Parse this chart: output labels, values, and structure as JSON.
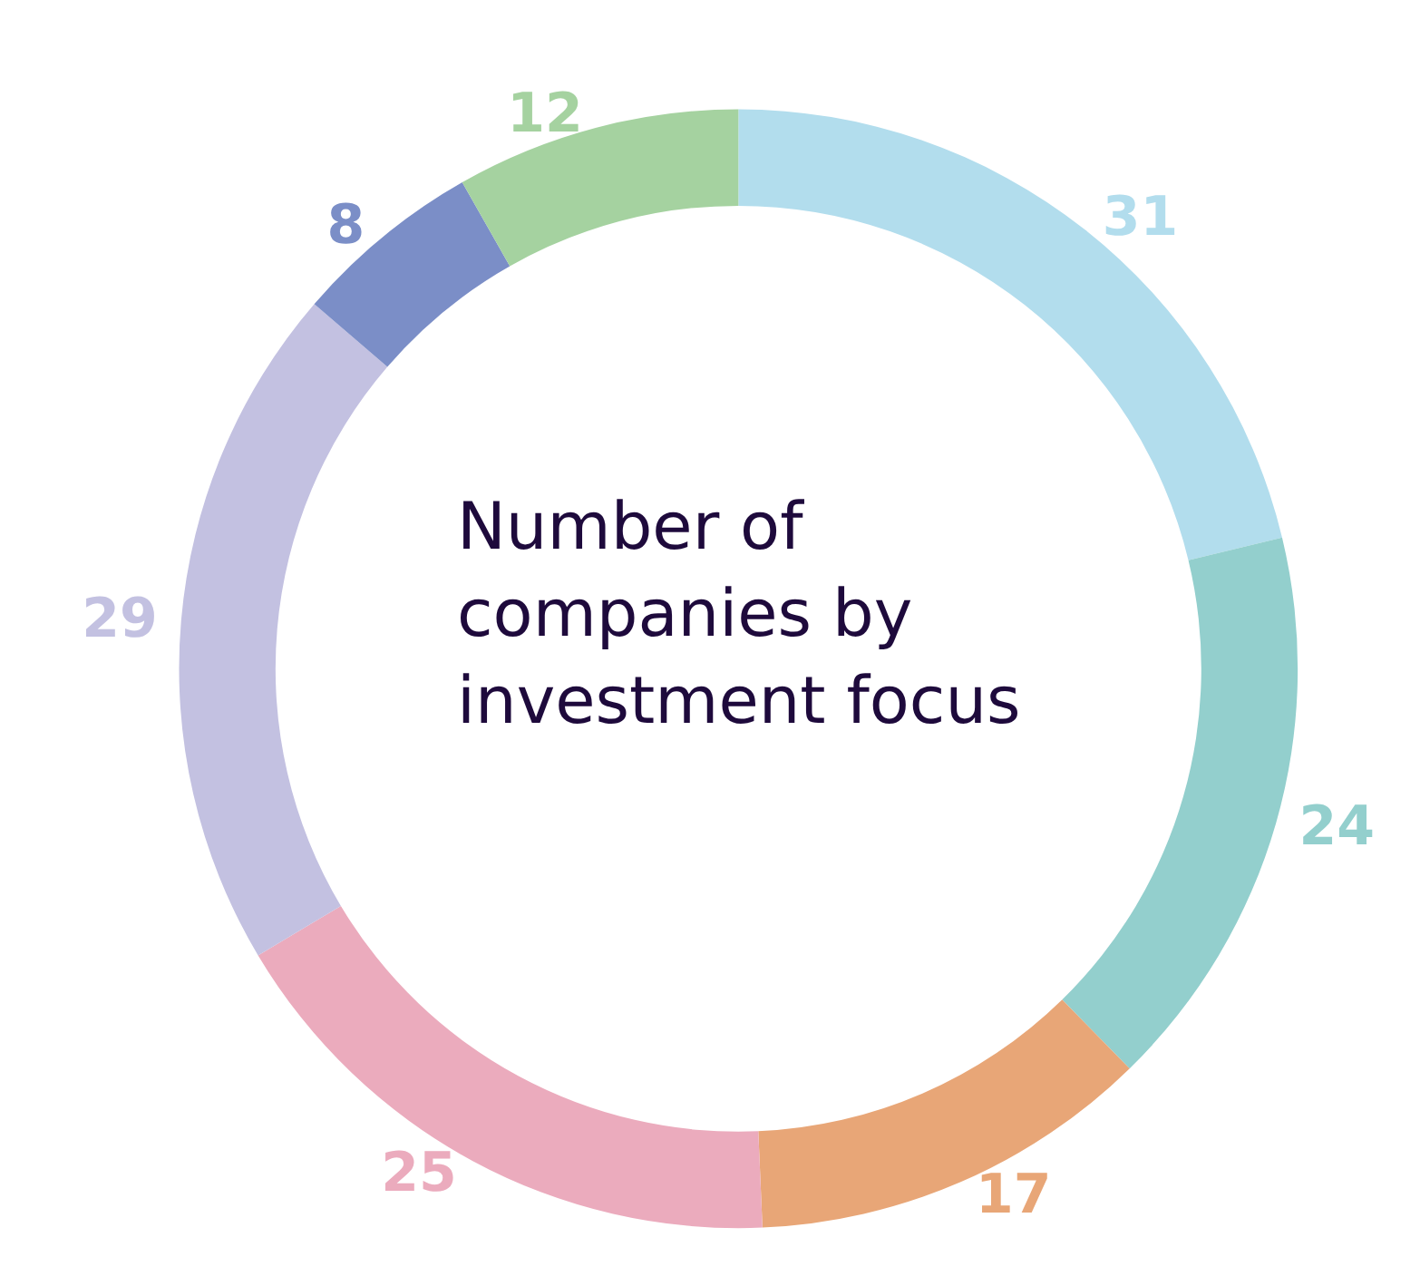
{
  "chart_data": {
    "type": "donut",
    "title": "Number of companies by investment focus",
    "categories": [
      null,
      null,
      null,
      null,
      null,
      null,
      null
    ],
    "values": [
      31,
      24,
      17,
      25,
      29,
      8,
      12
    ],
    "colors": [
      "#b2dded",
      "#93cfcd",
      "#e8a677",
      "#ebabbd",
      "#c3c1e1",
      "#7b8ec7",
      "#a5d2a0"
    ],
    "data_labels": true
  }
}
